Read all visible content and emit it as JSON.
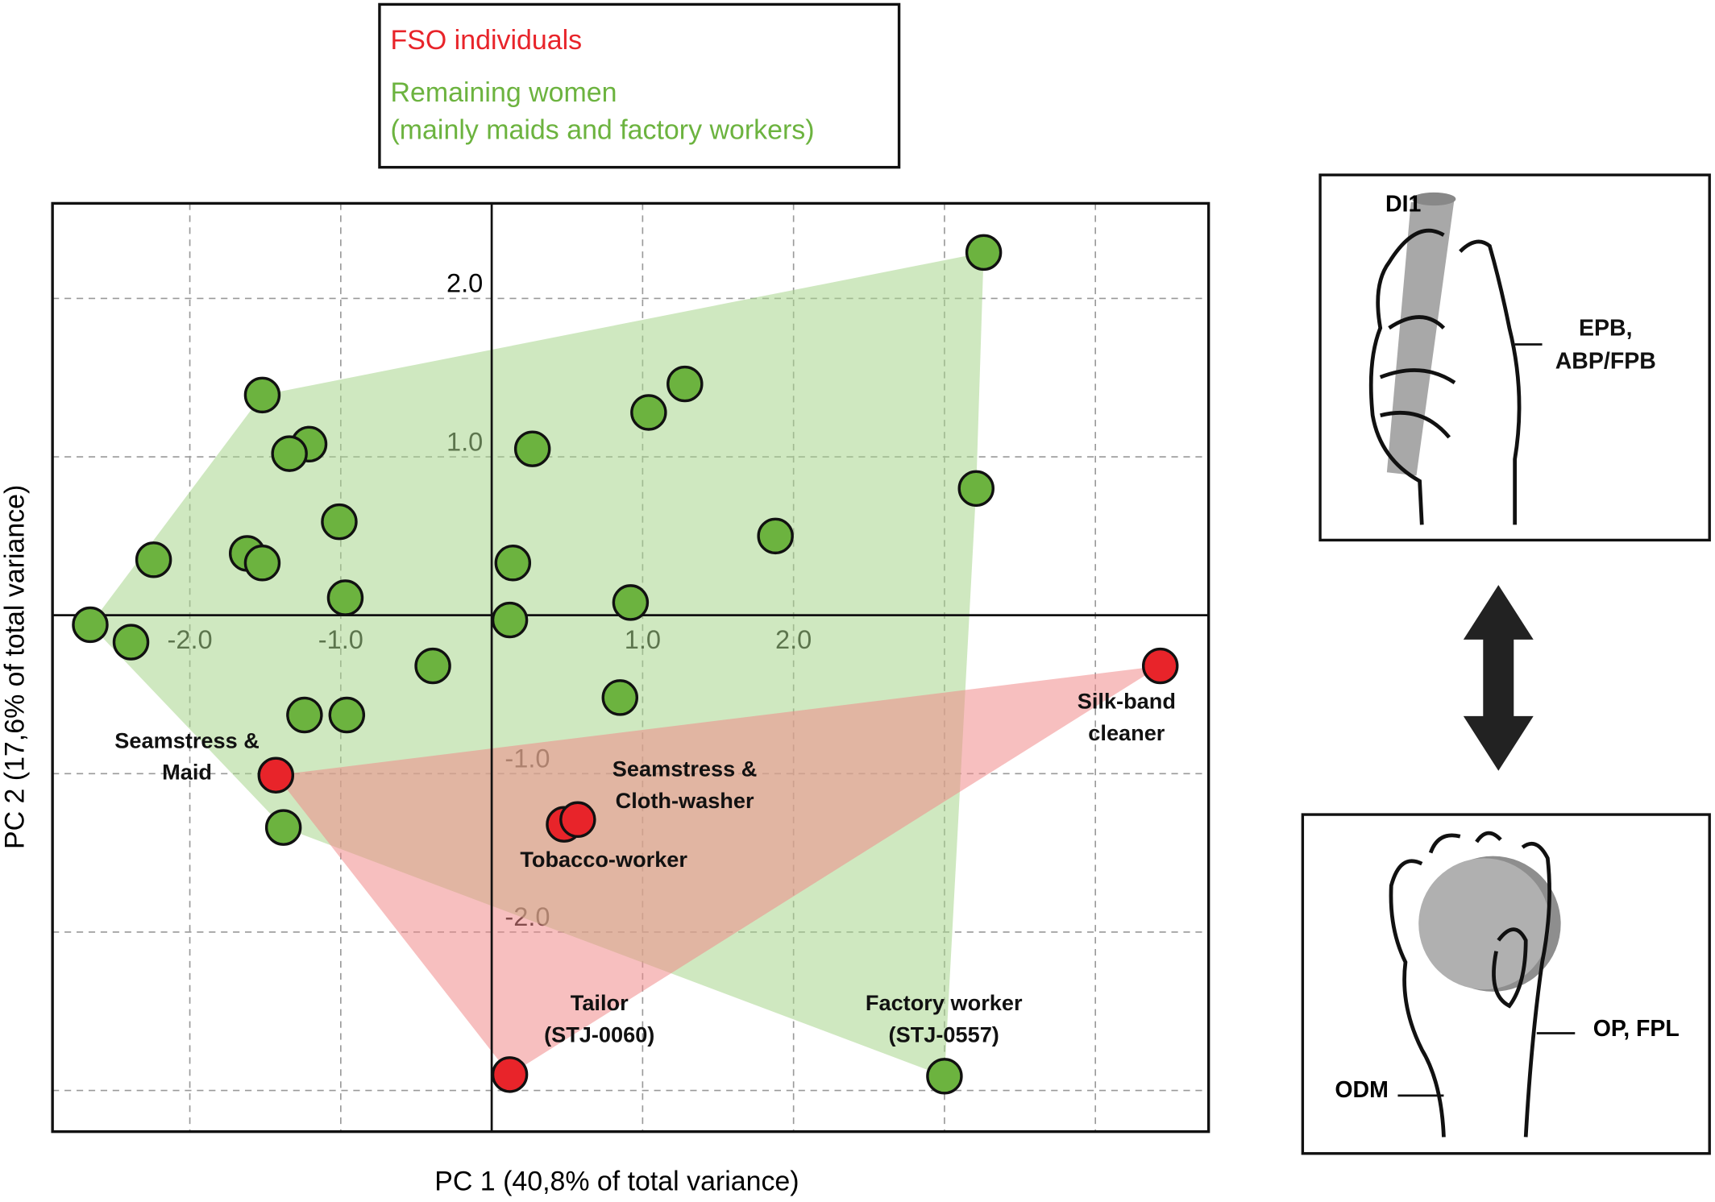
{
  "chart_data": {
    "type": "scatter",
    "xlabel": "PC 1 (40,8% of total variance)",
    "ylabel": "PC 2 (17,6% of total variance)",
    "xlim": [
      -2.91,
      4.75
    ],
    "ylim": [
      -3.26,
      2.6
    ],
    "xticks": [
      {
        "value": -2,
        "label": "-2.0"
      },
      {
        "value": -1,
        "label": "-1.0"
      },
      {
        "value": 1,
        "label": "1.0"
      },
      {
        "value": 2,
        "label": "2.0"
      },
      {
        "value": 3,
        "label": null
      },
      {
        "value": 4,
        "label": null
      }
    ],
    "yticks": [
      {
        "value": 2,
        "label": "2.0"
      },
      {
        "value": 1,
        "label": "1.0"
      },
      {
        "value": -1,
        "label": "-1.0"
      },
      {
        "value": -2,
        "label": "-2.0"
      },
      {
        "value": -3,
        "label": null
      }
    ],
    "grid": true,
    "hull": true,
    "series": [
      {
        "name": "FSO individuals",
        "color": "#e8242a",
        "hull_color": "#f08a8a",
        "x": [
          -1.43,
          0.48,
          0.57,
          0.12,
          4.43
        ],
        "values": [
          -1.01,
          -1.32,
          -1.29,
          -2.9,
          -0.32
        ]
      },
      {
        "name": "Remaining women\n(mainly maids and factory workers)",
        "color": "#6cb33f",
        "hull_color": "#a8d68c",
        "x": [
          3.26,
          -1.52,
          -1.21,
          -1.34,
          1.28,
          1.04,
          0.27,
          3.21,
          -1.01,
          1.88,
          -2.24,
          -1.62,
          -1.52,
          0.14,
          -0.97,
          0.92,
          0.12,
          -2.66,
          -2.39,
          -0.39,
          0.85,
          -1.24,
          -0.96,
          -1.38,
          3.0
        ],
        "values": [
          2.29,
          1.39,
          1.08,
          1.02,
          1.46,
          1.28,
          1.05,
          0.8,
          0.59,
          0.5,
          0.35,
          0.39,
          0.33,
          0.33,
          0.11,
          0.08,
          -0.03,
          -0.06,
          -0.17,
          -0.32,
          -0.52,
          -0.63,
          -0.63,
          -1.34,
          -2.91
        ]
      }
    ],
    "annotations": [
      "Seamstress &\nMaid",
      "Seamstress &\nCloth-washer",
      "Tobacco-worker",
      "Silk-band\ncleaner",
      "Tailor\n(STJ-0060)",
      "Factory worker\n(STJ-0557)"
    ]
  },
  "diagrams": {
    "top": {
      "labels": [
        "DI1",
        "EPB,\nABP/FPB"
      ]
    },
    "bottom": {
      "labels": [
        "ODM",
        "OP, FPL"
      ]
    }
  }
}
